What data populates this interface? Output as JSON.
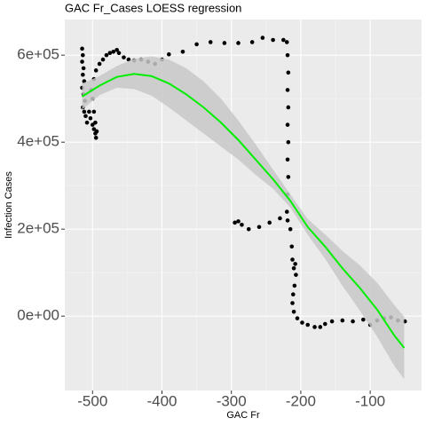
{
  "chart_data": {
    "type": "scatter",
    "title": "GAC Fr_Cases LOESS regression",
    "x_label": "GAC Fr",
    "y_label": "Infection Cases",
    "xlim": [
      -540,
      -26
    ],
    "ylim": [
      -171000,
      682000
    ],
    "xticks": [
      -500,
      -400,
      -300,
      -200,
      -100
    ],
    "yticks": [
      {
        "value": 0,
        "label": "0e+00"
      },
      {
        "value": 200000,
        "label": "2e+05"
      },
      {
        "value": 400000,
        "label": "4e+05"
      },
      {
        "value": 600000,
        "label": "6e+05"
      }
    ],
    "grid": true,
    "point_color": "#000000",
    "x": [
      -515,
      -514,
      -515,
      -513,
      -514,
      -512,
      -515,
      -513,
      -511,
      -514,
      -512,
      -510,
      -508,
      -505,
      -503,
      -500,
      -498,
      -496,
      -495,
      -494,
      -496,
      -498,
      -500,
      -502,
      -498,
      -495,
      -490,
      -485,
      -480,
      -475,
      -470,
      -465,
      -462,
      -455,
      -448,
      -440,
      -430,
      -420,
      -410,
      -400,
      -390,
      -370,
      -350,
      -330,
      -310,
      -290,
      -270,
      -255,
      -240,
      -225,
      -220,
      -219,
      -218,
      -219,
      -218,
      -219,
      -218,
      -219,
      -218,
      -219,
      -220,
      -219,
      -230,
      -245,
      -260,
      -275,
      -285,
      -295,
      -290,
      -215,
      -213,
      -212,
      -210,
      -208,
      -207,
      -209,
      -211,
      -212,
      -210,
      -205,
      -198,
      -190,
      -180,
      -172,
      -165,
      -155,
      -140,
      -125,
      -110,
      -100,
      -90,
      -80,
      -70,
      -60,
      -50
    ],
    "y": [
      615000,
      600000,
      585000,
      570000,
      555000,
      540000,
      525000,
      510000,
      495000,
      480000,
      470000,
      460000,
      445000,
      470000,
      455000,
      440000,
      430000,
      420000,
      410000,
      425000,
      445000,
      470000,
      500000,
      520000,
      545000,
      565000,
      580000,
      590000,
      600000,
      605000,
      608000,
      612000,
      605000,
      595000,
      590000,
      588000,
      590000,
      585000,
      580000,
      590000,
      602000,
      608000,
      625000,
      630000,
      628000,
      628000,
      630000,
      640000,
      635000,
      635000,
      630000,
      600000,
      560000,
      520000,
      480000,
      440000,
      400000,
      360000,
      320000,
      280000,
      240000,
      220000,
      225000,
      215000,
      205000,
      200000,
      210000,
      215000,
      218000,
      200000,
      160000,
      130000,
      110000,
      120000,
      95000,
      70000,
      50000,
      30000,
      10000,
      -5000,
      -15000,
      -20000,
      -25000,
      -25000,
      -18000,
      -12000,
      -10000,
      -12000,
      -8000,
      -20000,
      -10000,
      -5000,
      -3000,
      -10000,
      -12000
    ],
    "fit": {
      "color": "#00ee00",
      "band_color": "#c8c8c8",
      "x": [
        -515,
        -490,
        -465,
        -440,
        -415,
        -390,
        -365,
        -340,
        -315,
        -290,
        -265,
        -240,
        -215,
        -190,
        -165,
        -140,
        -115,
        -90,
        -65,
        -51
      ],
      "y": [
        505000,
        530000,
        550000,
        557000,
        552000,
        535000,
        510000,
        480000,
        445000,
        405000,
        360000,
        315000,
        265000,
        205000,
        160000,
        110000,
        65000,
        15000,
        -45000,
        -73000
      ],
      "ci_lower": [
        475000,
        508000,
        525000,
        522000,
        507000,
        480000,
        450000,
        420000,
        390000,
        360000,
        325000,
        293000,
        250000,
        187000,
        132000,
        70000,
        13000,
        -47000,
        -115000,
        -145000
      ],
      "ci_upper": [
        535000,
        552000,
        575000,
        592000,
        597000,
        590000,
        570000,
        540000,
        500000,
        450000,
        395000,
        337000,
        280000,
        223000,
        188000,
        150000,
        117000,
        77000,
        25000,
        -1000
      ]
    }
  }
}
